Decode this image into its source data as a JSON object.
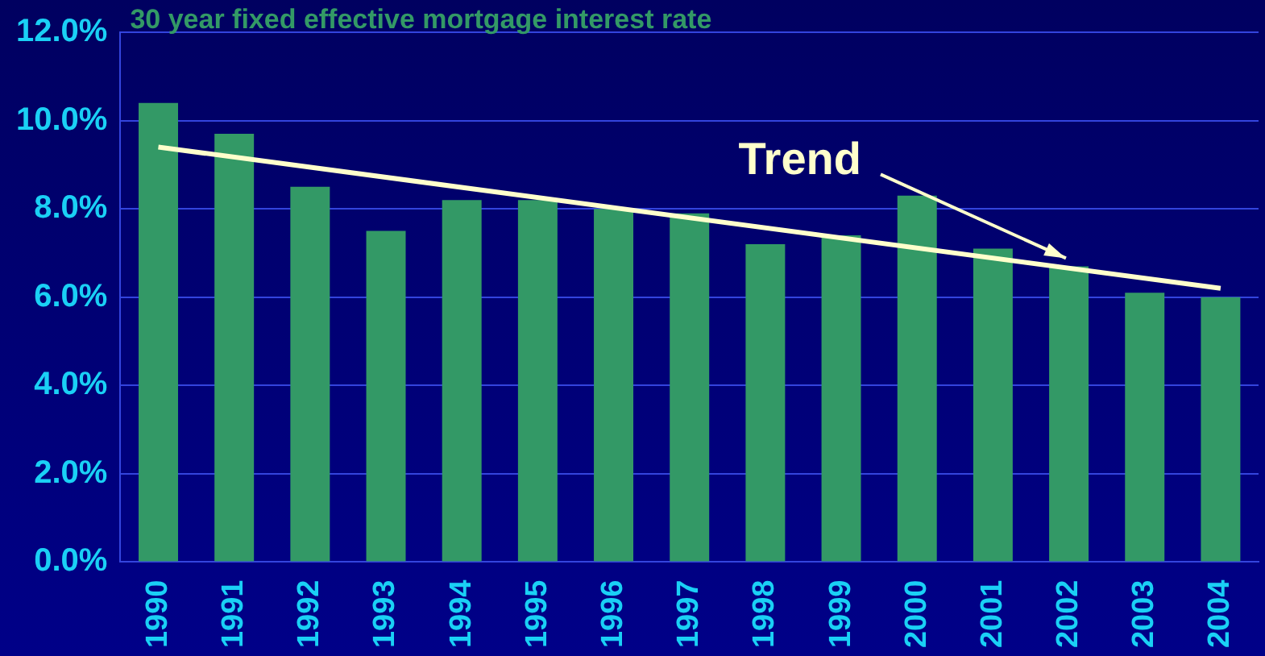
{
  "chart_data": {
    "type": "bar",
    "title": "30 year fixed effective mortgage interest rate",
    "categories": [
      "1990",
      "1991",
      "1992",
      "1993",
      "1994",
      "1995",
      "1996",
      "1997",
      "1998",
      "1999",
      "2000",
      "2001",
      "2002",
      "2003",
      "2004"
    ],
    "series": [
      {
        "color": "#339966",
        "values": [
          10.4,
          9.7,
          8.5,
          7.5,
          8.2,
          8.2,
          8.0,
          7.9,
          7.2,
          7.4,
          8.3,
          7.1,
          6.7,
          6.1,
          6.0
        ]
      },
      {
        "type": "line",
        "name": "Trend",
        "color": "#ffffcc",
        "values": [
          9.4,
          null,
          null,
          null,
          null,
          null,
          null,
          null,
          null,
          null,
          null,
          null,
          null,
          null,
          6.2
        ]
      }
    ],
    "ylim": [
      0,
      12
    ],
    "yticks": [
      {
        "value": 0,
        "label": "0.0%"
      },
      {
        "value": 2,
        "label": "2.0%"
      },
      {
        "value": 4,
        "label": "4.0%"
      },
      {
        "value": 6,
        "label": "6.0%"
      },
      {
        "value": 8,
        "label": "8.0%"
      },
      {
        "value": 10,
        "label": "10.0%"
      },
      {
        "value": 12,
        "label": "12.0%"
      }
    ],
    "grid": "y",
    "legend": false,
    "marker": "none"
  }
}
